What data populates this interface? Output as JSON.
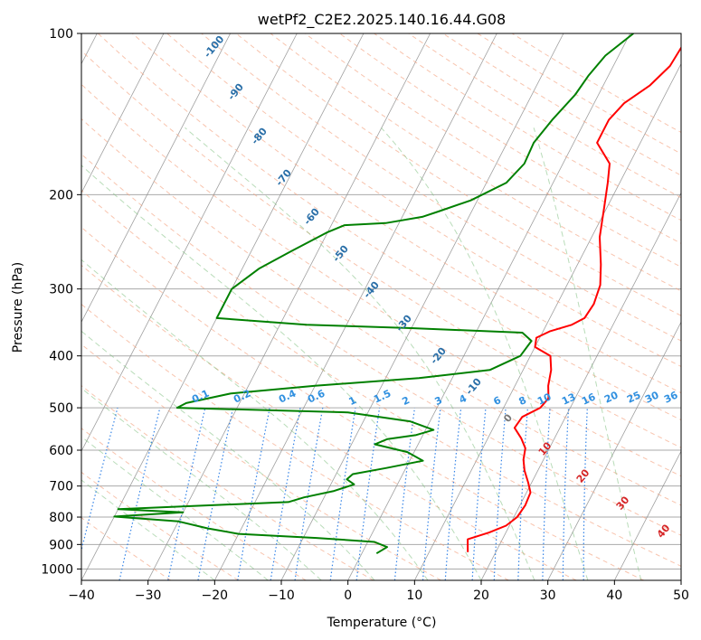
{
  "chart_data": {
    "type": "line",
    "title": "wetPf2_C2E2.2025.140.16.44.G08",
    "xlabel": "Temperature (°C)",
    "ylabel": "Pressure (hPa)",
    "xlim": [
      -40,
      50
    ],
    "ylim": [
      1050,
      100
    ],
    "y_scale": "log",
    "grid": true,
    "x_ticks": [
      -40,
      -30,
      -20,
      -10,
      0,
      10,
      20,
      30,
      40,
      50
    ],
    "x_tick_labels": [
      "−40",
      "−30",
      "−20",
      "−10",
      "0",
      "10",
      "20",
      "30",
      "40",
      "50"
    ],
    "y_ticks": [
      1000,
      900,
      800,
      700,
      600,
      500,
      400,
      300,
      200,
      100
    ],
    "y_tick_labels": [
      "1000",
      "900",
      "800",
      "700",
      "600",
      "500",
      "400",
      "300",
      "200",
      "100"
    ],
    "series": [
      {
        "color": "#ff0000",
        "points": [
          [
            15.8,
            930
          ],
          [
            15.3,
            905
          ],
          [
            14.8,
            880
          ],
          [
            17.5,
            855
          ],
          [
            19.5,
            830
          ],
          [
            20.5,
            800
          ],
          [
            20.8,
            760
          ],
          [
            20.6,
            720
          ],
          [
            19.5,
            690
          ],
          [
            18.0,
            655
          ],
          [
            17.0,
            625
          ],
          [
            16.4,
            595
          ],
          [
            15.0,
            570
          ],
          [
            13.2,
            545
          ],
          [
            13.5,
            520
          ],
          [
            15.5,
            500
          ],
          [
            16.0,
            480
          ],
          [
            15.0,
            455
          ],
          [
            14.2,
            425
          ],
          [
            13.0,
            400
          ],
          [
            10.0,
            385
          ],
          [
            9.5,
            370
          ],
          [
            11.0,
            360
          ],
          [
            13.8,
            350
          ],
          [
            15.2,
            340
          ],
          [
            15.5,
            320
          ],
          [
            15.0,
            295
          ],
          [
            13.5,
            270
          ],
          [
            11.2,
            240
          ],
          [
            9.5,
            210
          ],
          [
            8.2,
            190
          ],
          [
            7.0,
            175
          ],
          [
            3.5,
            160
          ],
          [
            3.5,
            145
          ],
          [
            4.5,
            135
          ],
          [
            7.0,
            125
          ],
          [
            8.5,
            115
          ],
          [
            8.8,
            105
          ],
          [
            9.3,
            100
          ]
        ]
      },
      {
        "color": "#008000",
        "points": [
          [
            2.2,
            935
          ],
          [
            3.3,
            910
          ],
          [
            1.0,
            890
          ],
          [
            -8.0,
            875
          ],
          [
            -20.0,
            860
          ],
          [
            -25.0,
            840
          ],
          [
            -30.0,
            815
          ],
          [
            -40.0,
            798
          ],
          [
            -30.0,
            784
          ],
          [
            -40.0,
            773
          ],
          [
            -15.0,
            750
          ],
          [
            -13.0,
            735
          ],
          [
            -9.0,
            715
          ],
          [
            -6.5,
            695
          ],
          [
            -8.0,
            680
          ],
          [
            -7.5,
            665
          ],
          [
            -3.0,
            648
          ],
          [
            2.0,
            628
          ],
          [
            -1.0,
            605
          ],
          [
            -6.5,
            585
          ],
          [
            -5.0,
            572
          ],
          [
            -1.0,
            562
          ],
          [
            1.2,
            550
          ],
          [
            -3.0,
            530
          ],
          [
            -13.0,
            510
          ],
          [
            -39.0,
            500
          ],
          [
            -38.0,
            490
          ],
          [
            -32.0,
            470
          ],
          [
            -20.0,
            455
          ],
          [
            -5.0,
            440
          ],
          [
            5.0,
            425
          ],
          [
            8.5,
            400
          ],
          [
            9.0,
            375
          ],
          [
            7.0,
            362
          ],
          [
            -10.0,
            355
          ],
          [
            -26.0,
            350
          ],
          [
            -40.0,
            340
          ],
          [
            -40.0,
            300
          ],
          [
            -37.5,
            275
          ],
          [
            -34.0,
            255
          ],
          [
            -30.0,
            235
          ],
          [
            -28.0,
            228
          ],
          [
            -22.0,
            226
          ],
          [
            -17.0,
            220
          ],
          [
            -15.0,
            215
          ],
          [
            -11.0,
            205
          ],
          [
            -7.0,
            190
          ],
          [
            -5.8,
            175
          ],
          [
            -6.0,
            160
          ],
          [
            -5.0,
            145
          ],
          [
            -3.5,
            130
          ],
          [
            -3.0,
            120
          ],
          [
            -2.0,
            110
          ],
          [
            0.5,
            100
          ]
        ]
      }
    ],
    "dry_adiabat_labels": [
      "-100",
      "-90",
      "-80",
      "-70",
      "-60",
      "-50",
      "-40",
      "-30",
      "-20",
      "-10",
      "0",
      "10",
      "20",
      "30",
      "40"
    ],
    "mixing_ratio_labels": [
      "0.1",
      "0.2",
      "0.4",
      "0.6",
      "1",
      "1.5",
      "2",
      "3",
      "4",
      "6",
      "8",
      "10",
      "13",
      "16",
      "20",
      "25",
      "30",
      "36"
    ]
  },
  "colors": {
    "temperature": "#ff0000",
    "dewpoint": "#008000",
    "dry_adiabat": "#f4a582",
    "moist_adiabat": "#7fbf7f",
    "mixing_ratio": "#1f77e4",
    "isotherm": "#888888",
    "isobar": "#aaaaaa",
    "label_dark_blue": "#2a6fa8",
    "label_light_blue": "#3090e0",
    "label_red": "#d62728"
  }
}
